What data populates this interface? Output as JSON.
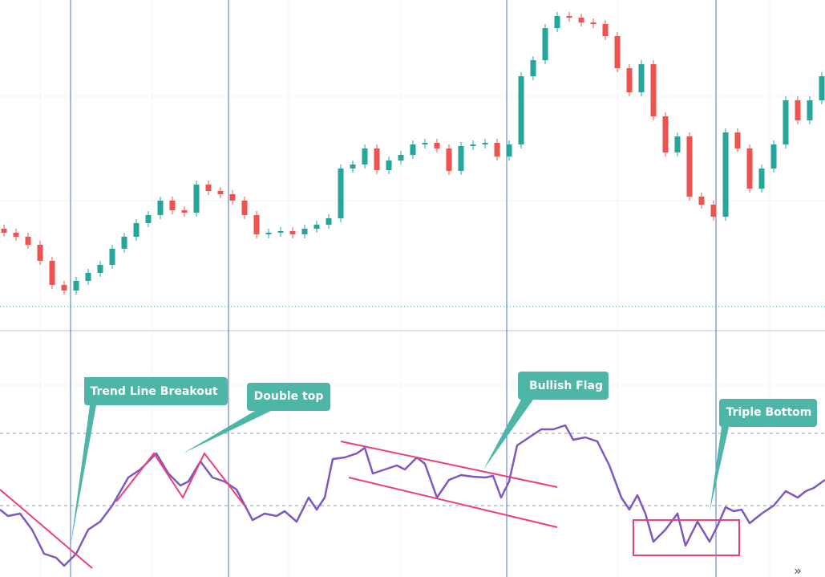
{
  "chart_data": {
    "type": "candlestick",
    "up_color": "#26a69a",
    "down_color": "#ef5350",
    "ylim": [
      0,
      410
    ],
    "price_line": 28,
    "open": [
      125,
      120,
      115,
      105,
      85,
      55,
      48,
      60,
      70,
      80,
      100,
      115,
      132,
      142,
      160,
      148,
      145,
      180,
      172,
      168,
      160,
      142,
      118,
      120,
      122,
      118,
      125,
      130,
      138,
      200,
      205,
      225,
      198,
      210,
      217,
      230,
      232,
      225,
      197,
      228,
      230,
      232,
      215,
      230,
      315,
      335,
      375,
      390,
      388,
      382,
      380,
      365,
      325,
      295,
      330,
      265,
      220,
      240,
      165,
      155,
      140,
      245,
      225,
      175,
      200,
      230,
      285,
      260,
      285
    ],
    "high": [
      130,
      125,
      120,
      110,
      90,
      60,
      65,
      75,
      85,
      105,
      120,
      137,
      147,
      165,
      165,
      153,
      185,
      185,
      177,
      173,
      165,
      147,
      125,
      127,
      127,
      130,
      135,
      143,
      205,
      210,
      230,
      230,
      215,
      222,
      235,
      237,
      237,
      230,
      233,
      235,
      237,
      237,
      235,
      320,
      340,
      380,
      395,
      395,
      393,
      387,
      385,
      370,
      330,
      335,
      335,
      270,
      245,
      245,
      170,
      160,
      250,
      250,
      230,
      205,
      235,
      290,
      290,
      290,
      320
    ],
    "low": [
      115,
      110,
      100,
      80,
      50,
      43,
      43,
      55,
      65,
      75,
      95,
      110,
      127,
      137,
      143,
      140,
      140,
      167,
      163,
      155,
      137,
      113,
      113,
      115,
      113,
      113,
      120,
      125,
      133,
      195,
      200,
      193,
      193,
      205,
      212,
      225,
      220,
      192,
      192,
      223,
      225,
      210,
      210,
      225,
      310,
      330,
      370,
      383,
      377,
      375,
      360,
      320,
      290,
      290,
      260,
      215,
      215,
      160,
      150,
      135,
      135,
      220,
      170,
      170,
      195,
      225,
      255,
      255,
      280
    ],
    "close": [
      120,
      115,
      105,
      85,
      55,
      48,
      60,
      70,
      80,
      100,
      115,
      132,
      142,
      160,
      148,
      145,
      180,
      172,
      168,
      160,
      142,
      118,
      120,
      122,
      118,
      125,
      130,
      138,
      200,
      205,
      225,
      198,
      210,
      217,
      230,
      232,
      225,
      197,
      228,
      230,
      232,
      215,
      230,
      315,
      335,
      375,
      390,
      388,
      382,
      380,
      365,
      325,
      295,
      330,
      265,
      220,
      240,
      165,
      155,
      140,
      245,
      225,
      175,
      200,
      230,
      285,
      260,
      285,
      315
    ],
    "indicator": {
      "type": "line",
      "color": "#7e57c2",
      "xlim": [
        0,
        1029
      ],
      "ylim": [
        0,
        300
      ],
      "levels": [
        179,
        89
      ],
      "x": [
        0,
        10,
        25,
        40,
        55,
        70,
        80,
        95,
        110,
        125,
        140,
        160,
        175,
        195,
        210,
        225,
        235,
        250,
        265,
        280,
        295,
        315,
        330,
        345,
        355,
        370,
        385,
        395,
        405,
        415,
        430,
        445,
        455,
        465,
        480,
        495,
        505,
        520,
        530,
        545,
        560,
        575,
        590,
        605,
        615,
        625,
        635,
        645,
        660,
        675,
        690,
        705,
        715,
        730,
        745,
        760,
        775,
        785,
        795,
        805,
        815,
        830,
        845,
        855,
        870,
        885,
        895,
        905,
        915,
        925,
        935,
        950,
        965,
        980,
        995,
        1005,
        1015,
        1029
      ],
      "values": [
        84,
        76,
        79,
        59,
        29,
        24,
        14,
        29,
        59,
        69,
        89,
        124,
        134,
        154,
        129,
        114,
        119,
        144,
        124,
        119,
        109,
        71,
        79,
        76,
        82,
        69,
        99,
        84,
        99,
        147,
        149,
        154,
        161,
        129,
        134,
        139,
        134,
        149,
        141,
        99,
        121,
        127,
        125,
        124,
        126,
        99,
        119,
        164,
        174,
        184,
        184,
        189,
        171,
        174,
        169,
        139,
        99,
        84,
        102,
        79,
        44,
        59,
        79,
        39,
        69,
        44,
        64,
        87,
        82,
        84,
        67,
        79,
        89,
        107,
        99,
        107,
        111,
        121
      ]
    },
    "vlines": [
      88,
      285,
      632,
      893
    ],
    "vline_color": "#4a6fd6",
    "annotations": [
      "Trend Line Breakout",
      "Double top",
      "Bullish Flag",
      "Triple Bottom"
    ],
    "scroll_label": "»"
  }
}
